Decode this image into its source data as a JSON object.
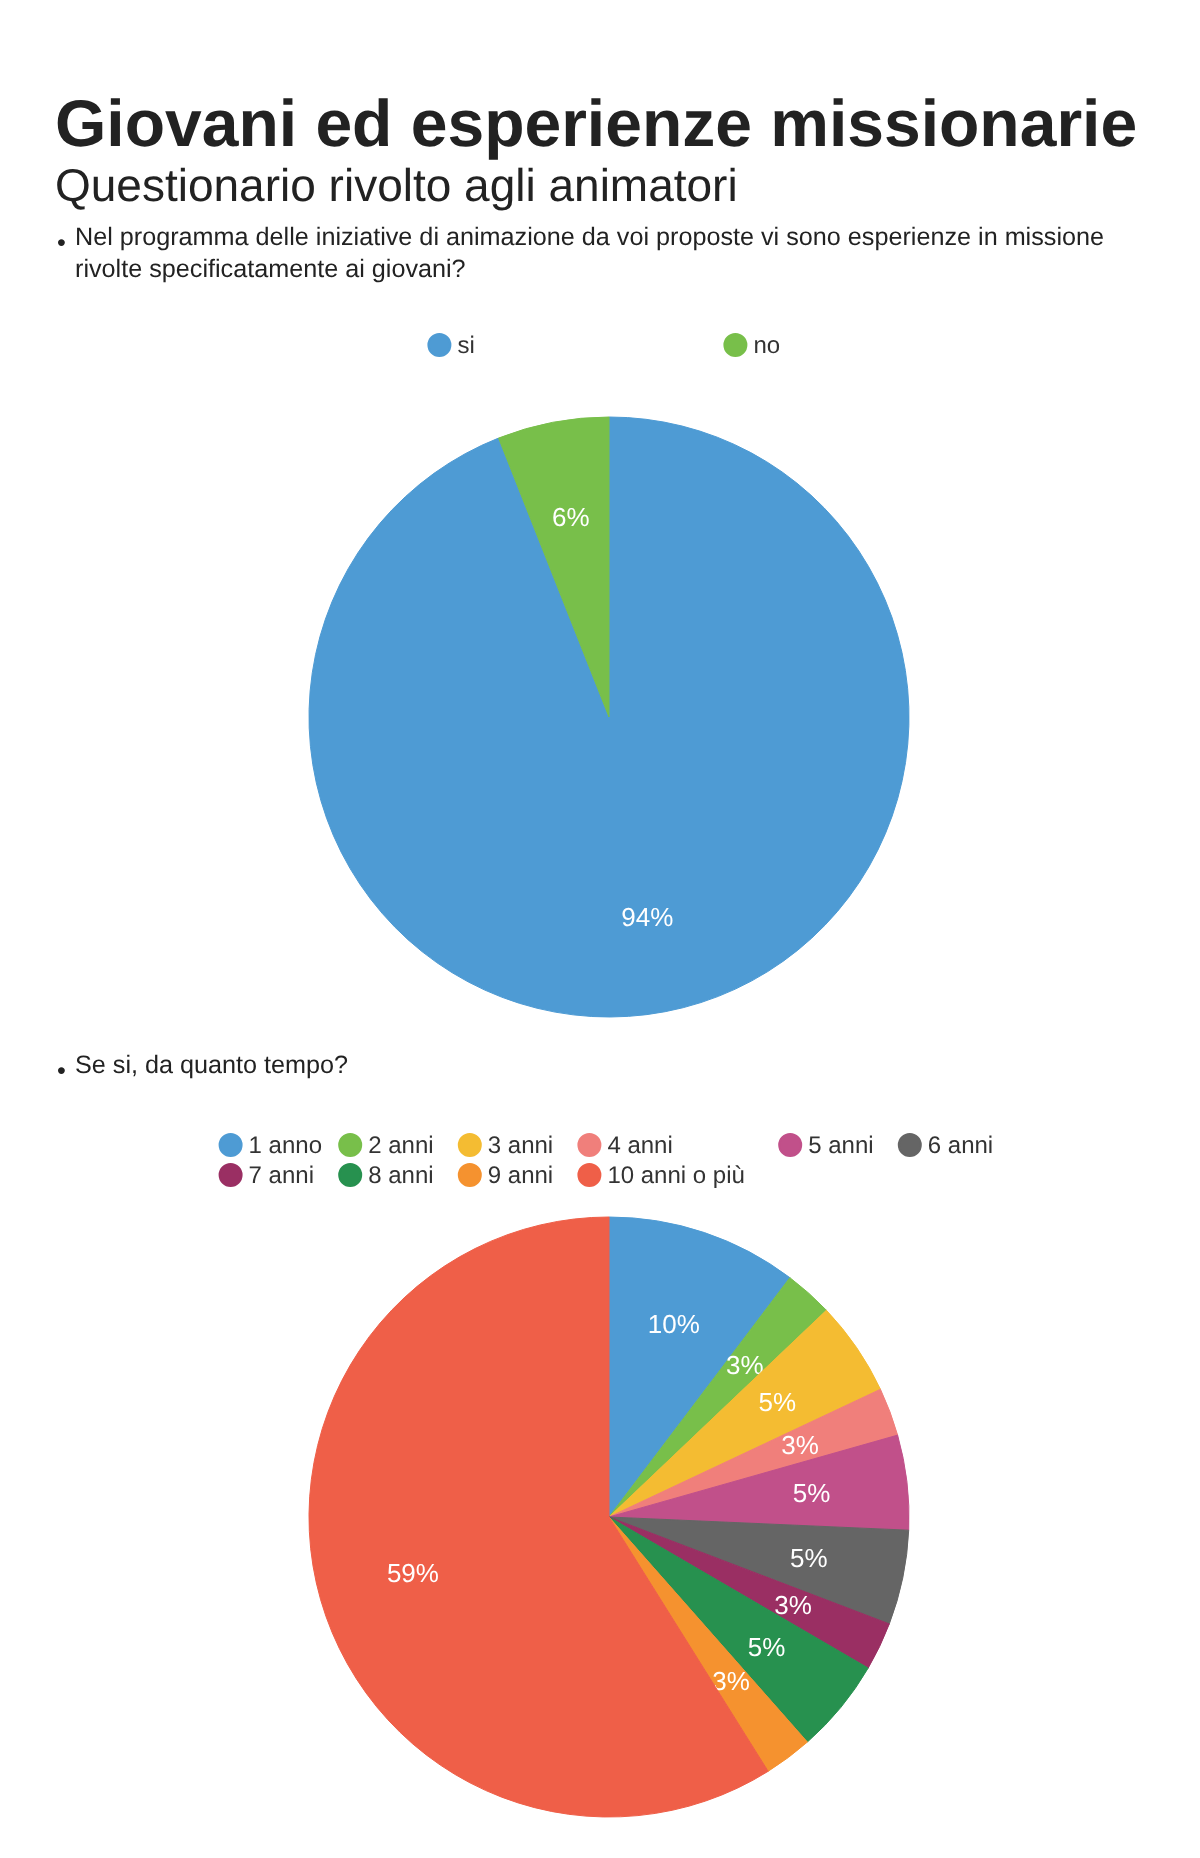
{
  "chart_data": [
    {
      "type": "pie",
      "title": "Giovani ed esperienze missionarie",
      "subtitle": "Questionario rivolto agli animatori",
      "annotations": [
        "• Nel programma delle iniziative di animazione da voi proposte vi sono esperienze in missione rivolte specificatamente ai giovani?"
      ],
      "categories": [
        "si",
        "no"
      ],
      "values": [
        94,
        6
      ],
      "colors": [
        "#4e9bd4",
        "#78bf4a"
      ],
      "value_labels": [
        "94%",
        "6%"
      ],
      "legend": "top"
    },
    {
      "type": "pie",
      "annotations": [
        "• Se si, da quanto tempo?"
      ],
      "categories": [
        "1 anno",
        "2 anni",
        "3 anni",
        "4 anni",
        "5 anni",
        "6 anni",
        "7 anni",
        "8 anni",
        "9 anni",
        "10 anni o più"
      ],
      "values": [
        10.3,
        2.6,
        5.1,
        2.6,
        5.1,
        5.1,
        2.6,
        5.1,
        2.6,
        58.9
      ],
      "colors": [
        "#4e9bd4",
        "#78bf4a",
        "#f4bc32",
        "#f07f7b",
        "#c1508a",
        "#656565",
        "#9a2f63",
        "#27914f",
        "#f5922f",
        "#ef5f48"
      ],
      "value_labels": [
        "10%",
        "3%",
        "5%",
        "3%",
        "5%",
        "5%",
        "3%",
        "5%",
        "3%",
        "59%"
      ],
      "legend": "top"
    }
  ]
}
